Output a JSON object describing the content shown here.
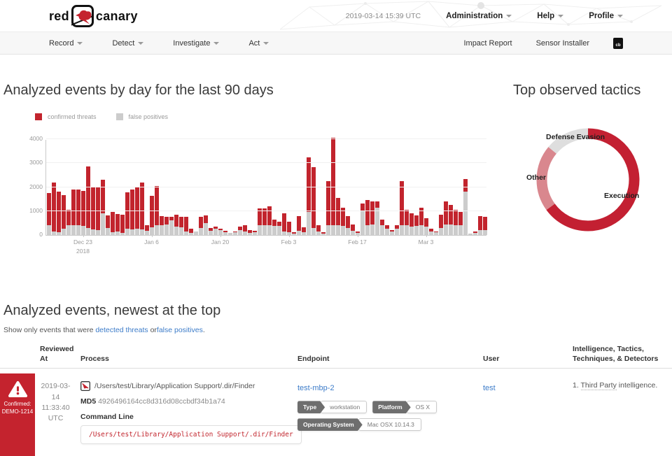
{
  "header": {
    "logo_red": "red",
    "logo_canary": "canary",
    "timestamp": "2019-03-14 15:39 UTC",
    "menus": [
      {
        "label": "Administration"
      },
      {
        "label": "Help"
      },
      {
        "label": "Profile"
      }
    ]
  },
  "nav": {
    "items": [
      {
        "label": "Record"
      },
      {
        "label": "Detect"
      },
      {
        "label": "Investigate"
      },
      {
        "label": "Act"
      }
    ],
    "right": [
      {
        "label": "Impact Report"
      },
      {
        "label": "Sensor Installer"
      }
    ],
    "cb_badge": "cb"
  },
  "events_chart": {
    "title": "Analyzed events by day for the last 90 days",
    "legend": [
      {
        "label": "confirmed threats",
        "color": "#c2242d"
      },
      {
        "label": "false positives",
        "color": "#cccccc"
      }
    ]
  },
  "tactics": {
    "title": "Top observed tactics"
  },
  "events_list": {
    "title": "Analyzed events, newest at the top",
    "filter_prefix": "Show only events that were",
    "filter_link1": "detected threats",
    "filter_conj": "or",
    "filter_link2": "false positives",
    "filter_suffix": ".",
    "columns": {
      "reviewed_at": "Reviewed At",
      "process": "Process",
      "endpoint": "Endpoint",
      "user": "User",
      "intel": "Intelligence, Tactics, Techniques, & Detectors"
    },
    "row": {
      "status_label": "Confirmed:",
      "status_id": "DEMO-1214",
      "reviewed_at": "2019-03-14 11:33:40 UTC",
      "process_path": "/Users/test/Library/Application Support/.dir/Finder",
      "md5_label": "MD5",
      "md5": "4926496164cc8d316d08ccbdf34b1a74",
      "command_line_label": "Command Line",
      "command_line": "/Users/test/Library/Application Support/.dir/Finder",
      "endpoint": "test-mbp-2",
      "endpoint_tags": [
        {
          "label": "Type",
          "value": "workstation"
        },
        {
          "label": "Platform",
          "value": "OS X"
        },
        {
          "label": "Operating System",
          "value": "Mac OSX 10.14.3"
        }
      ],
      "user": "test",
      "intel_prefix": "1.",
      "intel_term": "Third Party",
      "intel_suffix": "intelligence."
    }
  },
  "chart_data": [
    {
      "type": "bar",
      "stacked": true,
      "title": "Analyzed events by day for the last 90 days",
      "ylim": [
        0,
        4000
      ],
      "yticks": [
        0,
        1000,
        2000,
        3000,
        4000
      ],
      "x_tick_labels": [
        "Dec 23",
        "Jan 6",
        "Jan 20",
        "Feb 3",
        "Feb 17",
        "Mar 3"
      ],
      "x_tick_indices": [
        7,
        21,
        35,
        49,
        63,
        77
      ],
      "x_tick_sublabel": "2018",
      "x_tick_sublabel_index": 0,
      "series": [
        {
          "name": "false positives",
          "color": "#cccccc",
          "stack": "bottom",
          "values": [
            400,
            150,
            120,
            260,
            420,
            420,
            400,
            380,
            300,
            230,
            200,
            900,
            280,
            120,
            140,
            80,
            250,
            220,
            250,
            230,
            180,
            330,
            400,
            420,
            450,
            600,
            350,
            320,
            150,
            90,
            150,
            300,
            500,
            180,
            260,
            200,
            130,
            80,
            120,
            200,
            150,
            100,
            120,
            400,
            420,
            400,
            390,
            380,
            150,
            110,
            60,
            170,
            130,
            950,
            280,
            150,
            60,
            400,
            400,
            400,
            380,
            300,
            180,
            100,
            980,
            420,
            450,
            1150,
            400,
            250,
            150,
            250,
            400,
            400,
            350,
            380,
            400,
            350,
            150,
            110,
            300,
            450,
            450,
            400,
            400,
            1800,
            60,
            90,
            200,
            200
          ]
        },
        {
          "name": "confirmed threats",
          "color": "#c2242d",
          "stack": "top",
          "values": [
            1350,
            2050,
            1680,
            1400,
            630,
            1480,
            1500,
            1470,
            2550,
            1770,
            1800,
            1400,
            540,
            830,
            740,
            770,
            1530,
            1680,
            1750,
            1970,
            220,
            1320,
            1650,
            360,
            300,
            150,
            500,
            430,
            600,
            160,
            0,
            450,
            330,
            120,
            90,
            60,
            50,
            20,
            40,
            150,
            250,
            100,
            50,
            700,
            700,
            800,
            260,
            180,
            750,
            440,
            70,
            630,
            180,
            2300,
            2550,
            250,
            60,
            1850,
            3650,
            1150,
            750,
            500,
            250,
            60,
            320,
            1030,
            950,
            250,
            250,
            150,
            50,
            150,
            1850,
            650,
            550,
            450,
            750,
            350,
            100,
            40,
            550,
            950,
            800,
            650,
            550,
            550,
            0,
            60,
            600,
            550
          ]
        }
      ]
    },
    {
      "type": "donut",
      "title": "Top observed tactics",
      "slices": [
        {
          "label": "Execution",
          "value": 65,
          "color": "#c32032"
        },
        {
          "label": "Other",
          "value": 21,
          "color": "#d9878e"
        },
        {
          "label": "Defense Evasion",
          "value": 14,
          "color": "#dedede"
        }
      ]
    }
  ]
}
